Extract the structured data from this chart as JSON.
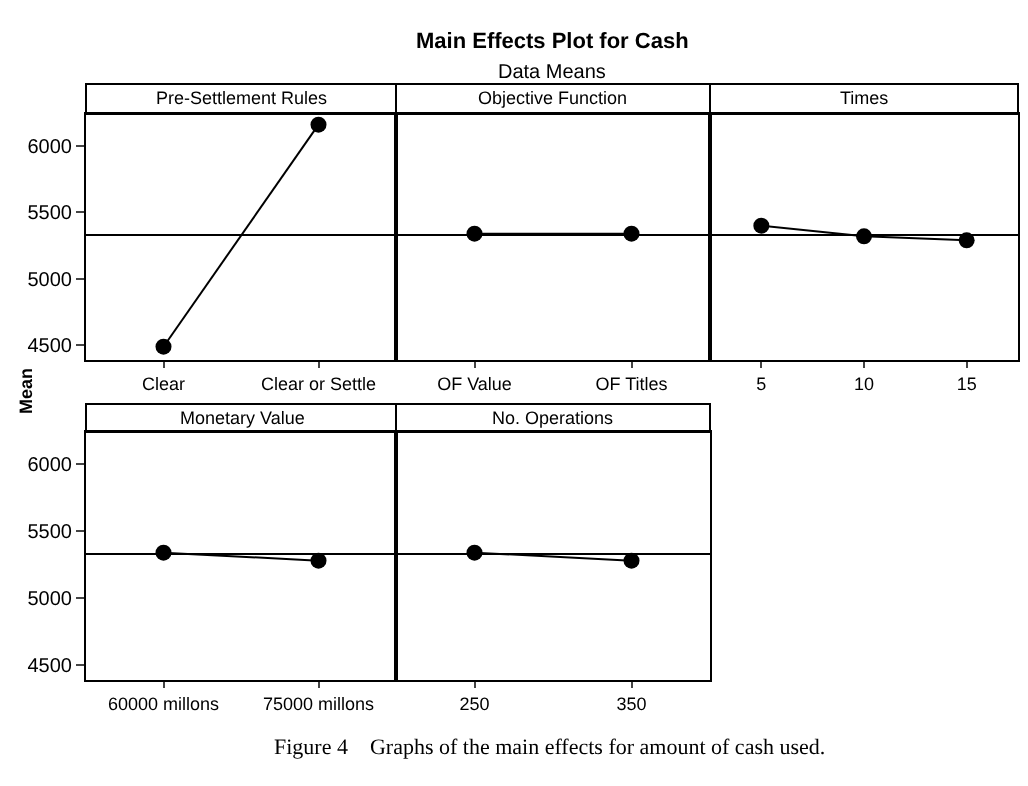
{
  "chart_data": [
    {
      "type": "line",
      "title": "Pre-Settlement Rules",
      "ylabel": "Mean",
      "annotations": [
        "Main Effects Plot for Cash",
        "Data Means"
      ],
      "categories": [
        "Clear",
        "Clear or Settle"
      ],
      "values": [
        4490,
        6160
      ],
      "color": "#000000",
      "marker": "circle",
      "ylim": [
        4390,
        6240
      ],
      "yticks": [
        4500,
        5000,
        5500,
        6000
      ],
      "ref_lines": [
        {
          "axis": "y",
          "value": 5330,
          "color": "#000000"
        }
      ],
      "grid": false
    },
    {
      "type": "line",
      "title": "Objective Function",
      "categories": [
        "OF Value",
        "OF Titles"
      ],
      "values": [
        5340,
        5340
      ],
      "color": "#000000",
      "marker": "circle",
      "ylim": [
        4390,
        6240
      ],
      "yticks": [
        4500,
        5000,
        5500,
        6000
      ],
      "tick_labels": "x",
      "ref_lines": [
        {
          "axis": "y",
          "value": 5330,
          "color": "#000000"
        }
      ],
      "grid": false
    },
    {
      "type": "line",
      "title": "Times",
      "categories": [
        "5",
        "10",
        "15"
      ],
      "values": [
        5400,
        5320,
        5290
      ],
      "color": "#000000",
      "marker": "circle",
      "ylim": [
        4390,
        6240
      ],
      "yticks": [
        4500,
        5000,
        5500,
        6000
      ],
      "tick_labels": "x",
      "ref_lines": [
        {
          "axis": "y",
          "value": 5330,
          "color": "#000000"
        }
      ],
      "grid": false
    },
    {
      "type": "line",
      "title": "Monetary Value",
      "categories": [
        "60000 millons",
        "75000 millons"
      ],
      "values": [
        5340,
        5280
      ],
      "color": "#000000",
      "marker": "circle",
      "ylim": [
        4390,
        6240
      ],
      "yticks": [
        4500,
        5000,
        5500,
        6000
      ],
      "ref_lines": [
        {
          "axis": "y",
          "value": 5330,
          "color": "#000000"
        }
      ],
      "grid": false
    },
    {
      "type": "line",
      "title": "No. Operations",
      "categories": [
        "250",
        "350"
      ],
      "values": [
        5340,
        5280
      ],
      "color": "#000000",
      "marker": "circle",
      "ylim": [
        4390,
        6240
      ],
      "yticks": [
        4500,
        5000,
        5500,
        6000
      ],
      "tick_labels": "x",
      "ref_lines": [
        {
          "axis": "y",
          "value": 5330,
          "color": "#000000"
        }
      ],
      "grid": false,
      "annotations": [
        "Figure 4    Graphs of the main effects for amount of cash used."
      ]
    }
  ]
}
